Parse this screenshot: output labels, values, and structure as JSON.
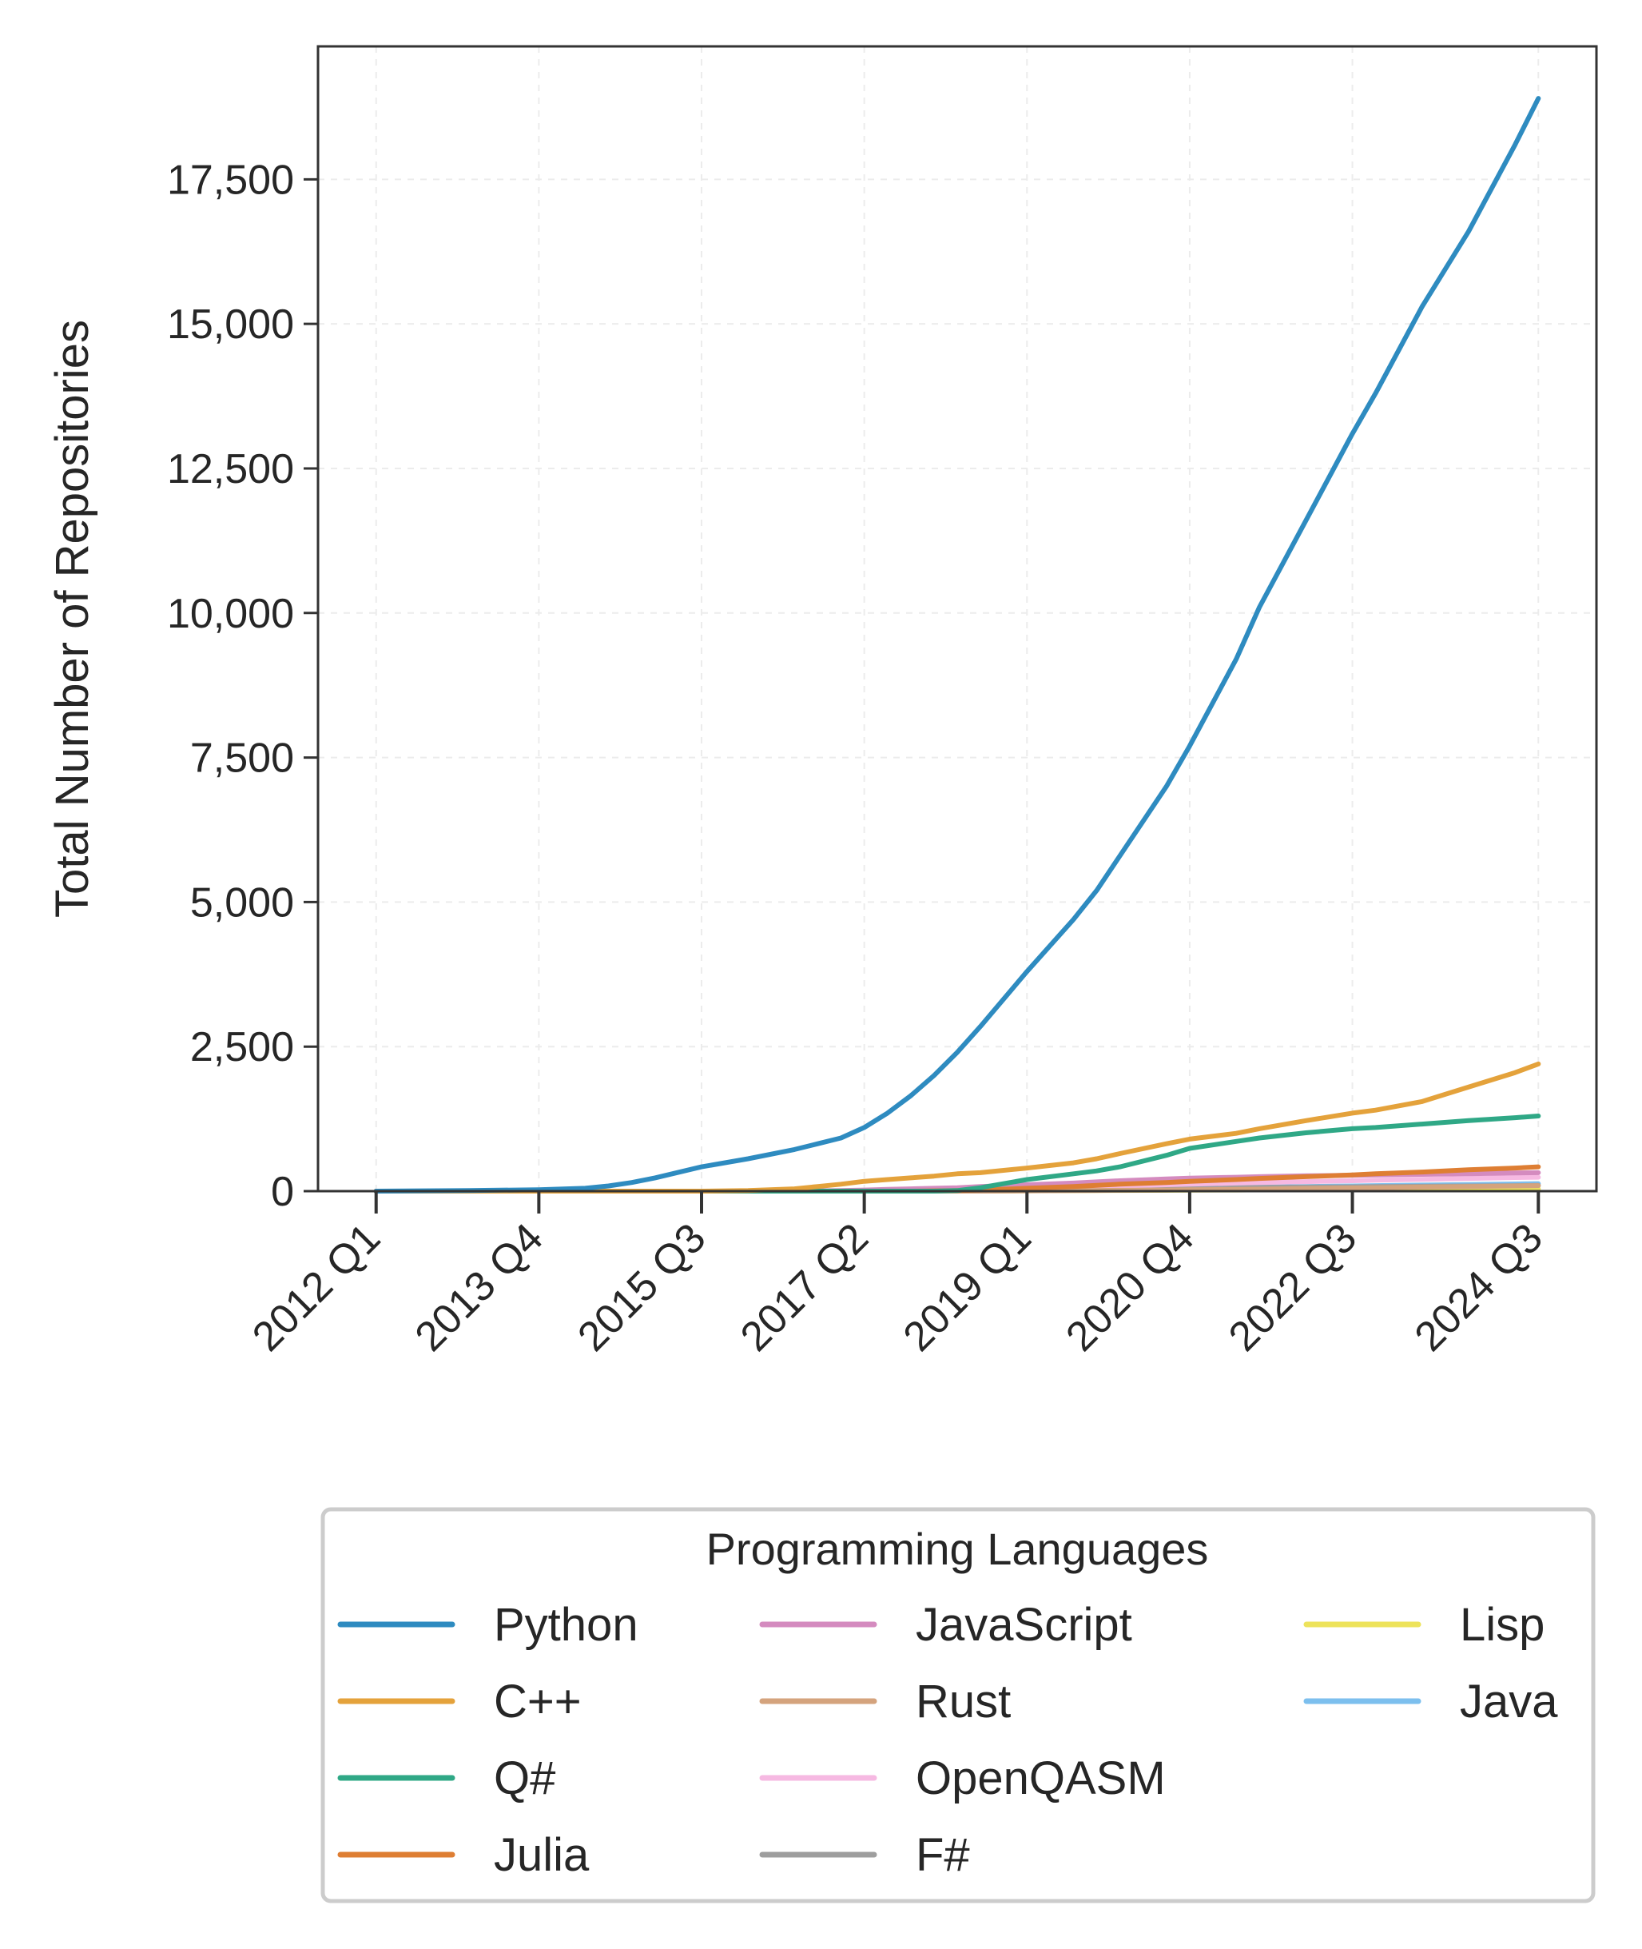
{
  "chart_data": {
    "type": "line",
    "title": "",
    "xlabel": "",
    "ylabel": "Total Number of Repositories",
    "ylim": [
      0,
      19800
    ],
    "y_ticks": [
      0,
      2500,
      5000,
      7500,
      10000,
      12500,
      15000,
      17500
    ],
    "y_tick_labels": [
      "0",
      "2,500",
      "5,000",
      "7,500",
      "10,000",
      "12,500",
      "15,000",
      "17,500"
    ],
    "x_tick_labels": [
      "2012 Q1",
      "2013 Q4",
      "2015 Q3",
      "2017 Q2",
      "2019 Q1",
      "2020 Q4",
      "2022 Q3",
      "2024 Q3"
    ],
    "x_tick_index": [
      0,
      7,
      14,
      21,
      28,
      35,
      42,
      50
    ],
    "x_range": [
      -2.5,
      52.5
    ],
    "grid": true,
    "legend": {
      "title": "Programming Languages",
      "placement": "bottom",
      "columns": 3
    },
    "x_index": [
      0,
      4,
      7,
      9,
      10,
      11,
      12,
      14,
      16,
      18,
      19,
      20,
      21,
      22,
      23,
      24,
      25,
      26,
      28,
      30,
      31,
      32,
      34,
      35,
      37,
      38,
      40,
      42,
      43,
      45,
      47,
      49,
      50
    ],
    "series": [
      {
        "name": "Python",
        "color": "#2e8bc0",
        "values": [
          0,
          10,
          25,
          50,
          90,
          150,
          230,
          420,
          560,
          720,
          820,
          920,
          1100,
          1350,
          1650,
          2000,
          2400,
          2850,
          3800,
          4700,
          5200,
          5800,
          7000,
          7700,
          9200,
          10100,
          11600,
          13100,
          13800,
          15300,
          16600,
          18100,
          18900
        ]
      },
      {
        "name": "C++",
        "color": "#e4a23b",
        "values": [
          0,
          0,
          0,
          0,
          0,
          0,
          0,
          0,
          10,
          40,
          80,
          120,
          170,
          200,
          230,
          260,
          300,
          320,
          400,
          490,
          560,
          650,
          820,
          900,
          1000,
          1080,
          1220,
          1350,
          1400,
          1550,
          1800,
          2050,
          2200
        ]
      },
      {
        "name": "Q#",
        "color": "#2fa886",
        "values": [
          0,
          0,
          0,
          0,
          0,
          0,
          0,
          0,
          0,
          0,
          0,
          0,
          0,
          0,
          0,
          0,
          10,
          60,
          200,
          300,
          350,
          420,
          620,
          740,
          860,
          920,
          1010,
          1080,
          1100,
          1160,
          1220,
          1270,
          1300
        ]
      },
      {
        "name": "Julia",
        "color": "#de7e33",
        "values": [
          0,
          0,
          0,
          0,
          0,
          0,
          0,
          0,
          0,
          0,
          0,
          0,
          0,
          0,
          0,
          5,
          10,
          20,
          50,
          80,
          100,
          120,
          150,
          170,
          200,
          220,
          250,
          280,
          300,
          330,
          370,
          400,
          420
        ]
      },
      {
        "name": "JavaScript",
        "color": "#d48bbf",
        "values": [
          0,
          0,
          0,
          0,
          0,
          0,
          0,
          0,
          0,
          0,
          5,
          10,
          20,
          30,
          40,
          50,
          60,
          80,
          110,
          140,
          160,
          180,
          210,
          225,
          240,
          250,
          265,
          275,
          280,
          290,
          300,
          315,
          320
        ]
      },
      {
        "name": "Rust",
        "color": "#d4a37d",
        "values": [
          0,
          0,
          0,
          0,
          0,
          0,
          0,
          0,
          0,
          0,
          0,
          0,
          0,
          0,
          0,
          0,
          0,
          0,
          5,
          10,
          12,
          15,
          20,
          25,
          30,
          35,
          45,
          55,
          60,
          70,
          80,
          90,
          95
        ]
      },
      {
        "name": "OpenQASM",
        "color": "#f6b9e2",
        "values": [
          0,
          0,
          0,
          0,
          0,
          0,
          0,
          0,
          0,
          0,
          0,
          0,
          0,
          0,
          5,
          10,
          20,
          30,
          50,
          70,
          80,
          90,
          110,
          120,
          140,
          150,
          165,
          180,
          190,
          205,
          220,
          235,
          240
        ]
      },
      {
        "name": "F#",
        "color": "#9e9e9e",
        "values": [
          0,
          0,
          0,
          0,
          0,
          0,
          0,
          0,
          0,
          0,
          0,
          0,
          0,
          0,
          0,
          0,
          0,
          5,
          15,
          25,
          30,
          35,
          45,
          50,
          60,
          65,
          70,
          75,
          80,
          85,
          90,
          95,
          100
        ]
      },
      {
        "name": "Lisp",
        "color": "#ede35b",
        "values": [
          0,
          0,
          0,
          0,
          0,
          0,
          0,
          0,
          0,
          0,
          0,
          0,
          0,
          0,
          0,
          0,
          0,
          0,
          5,
          8,
          10,
          12,
          15,
          18,
          20,
          22,
          25,
          28,
          30,
          32,
          35,
          38,
          40
        ]
      },
      {
        "name": "Java",
        "color": "#7cbfee",
        "values": [
          0,
          0,
          0,
          0,
          0,
          0,
          0,
          0,
          0,
          0,
          0,
          0,
          0,
          0,
          0,
          0,
          5,
          10,
          20,
          30,
          35,
          40,
          50,
          55,
          65,
          70,
          80,
          90,
          95,
          105,
          115,
          125,
          130
        ]
      }
    ]
  }
}
